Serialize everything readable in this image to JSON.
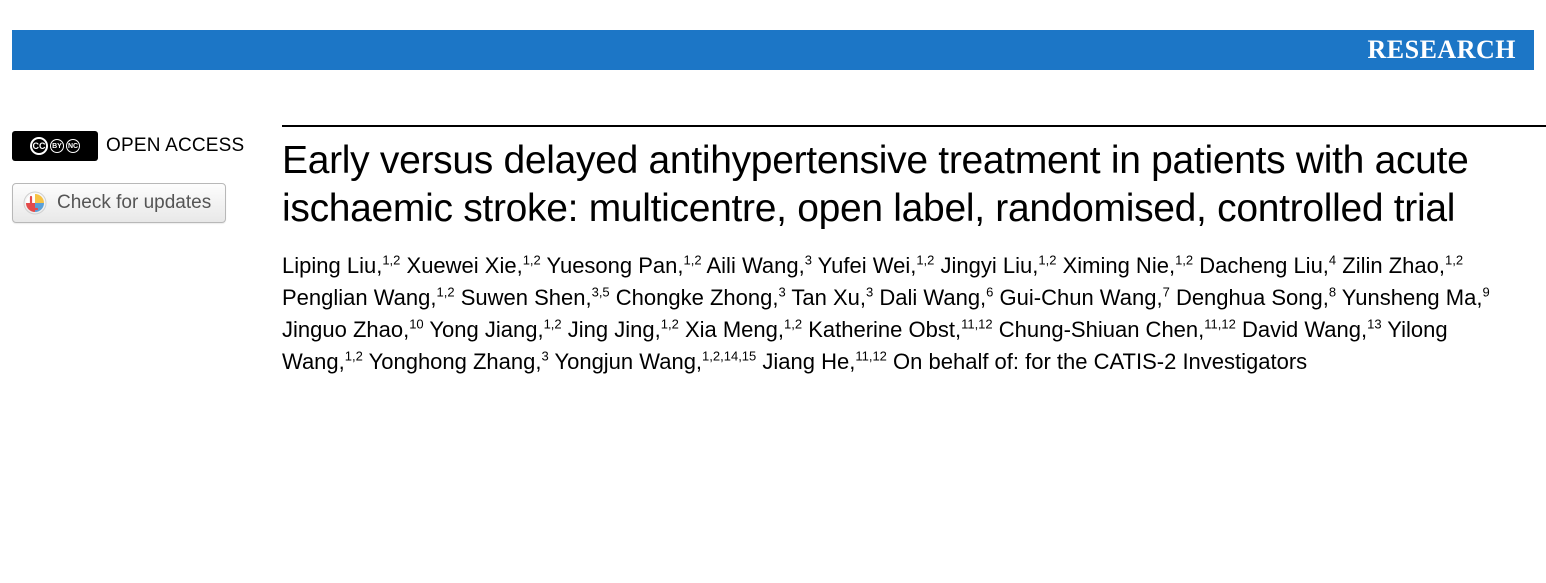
{
  "colors": {
    "banner_bg": "#1c76c6",
    "banner_text": "#ffffff",
    "title_text": "#000000",
    "author_text": "#000000",
    "button_border": "#b8b8b8",
    "button_text": "#555555",
    "page_bg": "#ffffff"
  },
  "banner": {
    "label": "RESEARCH"
  },
  "sidebar": {
    "open_access_label": "OPEN ACCESS",
    "cc_icons": [
      "CC",
      "BY",
      "NC"
    ],
    "check_updates_label": "Check for updates"
  },
  "article": {
    "title": "Early versus delayed antihypertensive treatment in patients with acute ischaemic stroke: multicentre, open label, randomised, controlled trial",
    "authors": [
      {
        "name": "Liping Liu",
        "aff": "1,2"
      },
      {
        "name": "Xuewei Xie",
        "aff": "1,2"
      },
      {
        "name": "Yuesong Pan",
        "aff": "1,2"
      },
      {
        "name": "Aili Wang",
        "aff": "3"
      },
      {
        "name": "Yufei Wei",
        "aff": "1,2"
      },
      {
        "name": "Jingyi Liu",
        "aff": "1,2"
      },
      {
        "name": "Ximing Nie",
        "aff": "1,2"
      },
      {
        "name": "Dacheng Liu",
        "aff": "4"
      },
      {
        "name": "Zilin Zhao",
        "aff": "1,2"
      },
      {
        "name": "Penglian Wang",
        "aff": "1,2"
      },
      {
        "name": "Suwen Shen",
        "aff": "3,5"
      },
      {
        "name": "Chongke Zhong",
        "aff": "3"
      },
      {
        "name": "Tan Xu",
        "aff": "3"
      },
      {
        "name": "Dali Wang",
        "aff": "6"
      },
      {
        "name": "Gui-Chun Wang",
        "aff": "7"
      },
      {
        "name": "Denghua Song",
        "aff": "8"
      },
      {
        "name": "Yunsheng Ma",
        "aff": "9"
      },
      {
        "name": "Jinguo Zhao",
        "aff": "10"
      },
      {
        "name": "Yong Jiang",
        "aff": "1,2"
      },
      {
        "name": "Jing Jing",
        "aff": "1,2"
      },
      {
        "name": "Xia Meng",
        "aff": "1,2"
      },
      {
        "name": "Katherine Obst",
        "aff": "11,12"
      },
      {
        "name": "Chung-Shiuan Chen",
        "aff": "11,12"
      },
      {
        "name": "David Wang",
        "aff": "13"
      },
      {
        "name": "Yilong Wang",
        "aff": "1,2"
      },
      {
        "name": "Yonghong Zhang",
        "aff": "3"
      },
      {
        "name": "Yongjun Wang",
        "aff": "1,2,14,15"
      },
      {
        "name": "Jiang He",
        "aff": "11,12"
      }
    ],
    "author_suffix": "On behalf of: for the CATIS-2 Investigators"
  }
}
